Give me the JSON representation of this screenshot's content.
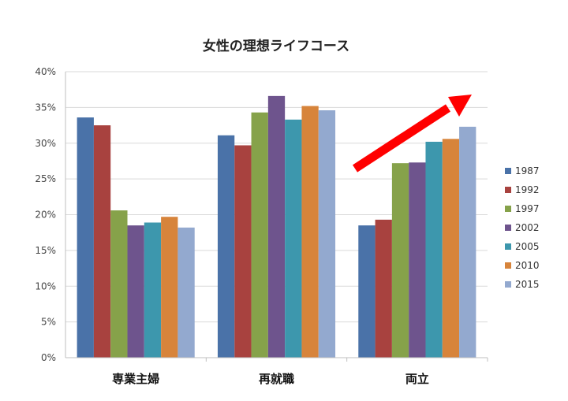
{
  "chart_data": {
    "type": "bar",
    "title": "女性の理想ライフコース",
    "xlabel": "",
    "ylabel": "",
    "categories": [
      "専業主婦",
      "再就職",
      "両立"
    ],
    "yticks": [
      "0%",
      "5%",
      "10%",
      "15%",
      "20%",
      "25%",
      "30%",
      "35%",
      "40%"
    ],
    "ylim": [
      0,
      40
    ],
    "grid": true,
    "legend_position": "right",
    "series": [
      {
        "name": "1987",
        "color": "#4a72a8",
        "values": [
          33.6,
          31.1,
          18.5
        ]
      },
      {
        "name": "1992",
        "color": "#a8423f",
        "values": [
          32.5,
          29.7,
          19.3
        ]
      },
      {
        "name": "1997",
        "color": "#86a24a",
        "values": [
          20.6,
          34.3,
          27.2
        ]
      },
      {
        "name": "2002",
        "color": "#6e548d",
        "values": [
          18.5,
          36.6,
          27.3
        ]
      },
      {
        "name": "2005",
        "color": "#3d97ad",
        "values": [
          18.9,
          33.3,
          30.2
        ]
      },
      {
        "name": "2010",
        "color": "#d7843b",
        "values": [
          19.7,
          35.2,
          30.6
        ]
      },
      {
        "name": "2015",
        "color": "#93a9cf",
        "values": [
          18.2,
          34.6,
          32.3
        ]
      }
    ],
    "annotation": {
      "type": "arrow",
      "color": "#ff0000",
      "meaning": "increasing trend for 両立"
    }
  }
}
